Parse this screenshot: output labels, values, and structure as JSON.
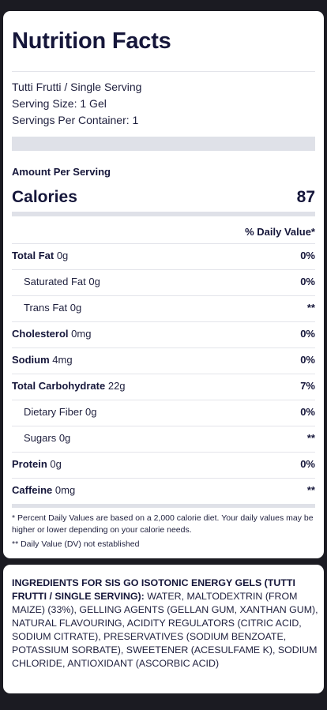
{
  "title": "Nutrition Facts",
  "serving": {
    "product": "Tutti Frutti / Single Serving",
    "size": "Serving Size: 1 Gel",
    "per_container": "Servings Per Container: 1"
  },
  "amount_per_serving": "Amount Per Serving",
  "calories": {
    "label": "Calories",
    "value": "87"
  },
  "daily_value_header": "% Daily Value*",
  "nutrients": [
    {
      "name": "Total Fat",
      "amount": "0g",
      "dv": "0%",
      "sub": false
    },
    {
      "name": "Saturated Fat",
      "amount": "0g",
      "dv": "0%",
      "sub": true
    },
    {
      "name": "Trans Fat",
      "amount": "0g",
      "dv": "**",
      "sub": true
    },
    {
      "name": "Cholesterol",
      "amount": "0mg",
      "dv": "0%",
      "sub": false
    },
    {
      "name": "Sodium",
      "amount": "4mg",
      "dv": "0%",
      "sub": false
    },
    {
      "name": "Total Carbohydrate",
      "amount": "22g",
      "dv": "7%",
      "sub": false
    },
    {
      "name": "Dietary Fiber",
      "amount": "0g",
      "dv": "0%",
      "sub": true
    },
    {
      "name": "Sugars",
      "amount": "0g",
      "dv": "**",
      "sub": true
    },
    {
      "name": "Protein",
      "amount": "0g",
      "dv": "0%",
      "sub": false
    },
    {
      "name": "Caffeine",
      "amount": "0mg",
      "dv": "**",
      "sub": false
    }
  ],
  "footnote_1": "* Percent Daily Values are based on a 2,000 calorie diet. Your daily values may be higher or lower depending on your calorie needs.",
  "footnote_2": "** Daily Value (DV) not established",
  "ingredients": {
    "heading": "INGREDIENTS FOR SIS GO ISOTONIC ENERGY GELS (TUTTI FRUTTI / SINGLE SERVING):",
    "text": "WATER, MALTODEXTRIN (FROM MAIZE) (33%), GELLING AGENTS (GELLAN GUM, XANTHAN GUM), NATURAL FLAVOURING, ACIDITY REGULATORS (CITRIC ACID, SODIUM CITRATE), PRESERVATIVES (SODIUM BENZOATE, POTASSIUM SORBATE), SWEETENER (ACESULFAME K), SODIUM CHLORIDE, ANTIOXIDANT (ASCORBIC ACID)"
  }
}
